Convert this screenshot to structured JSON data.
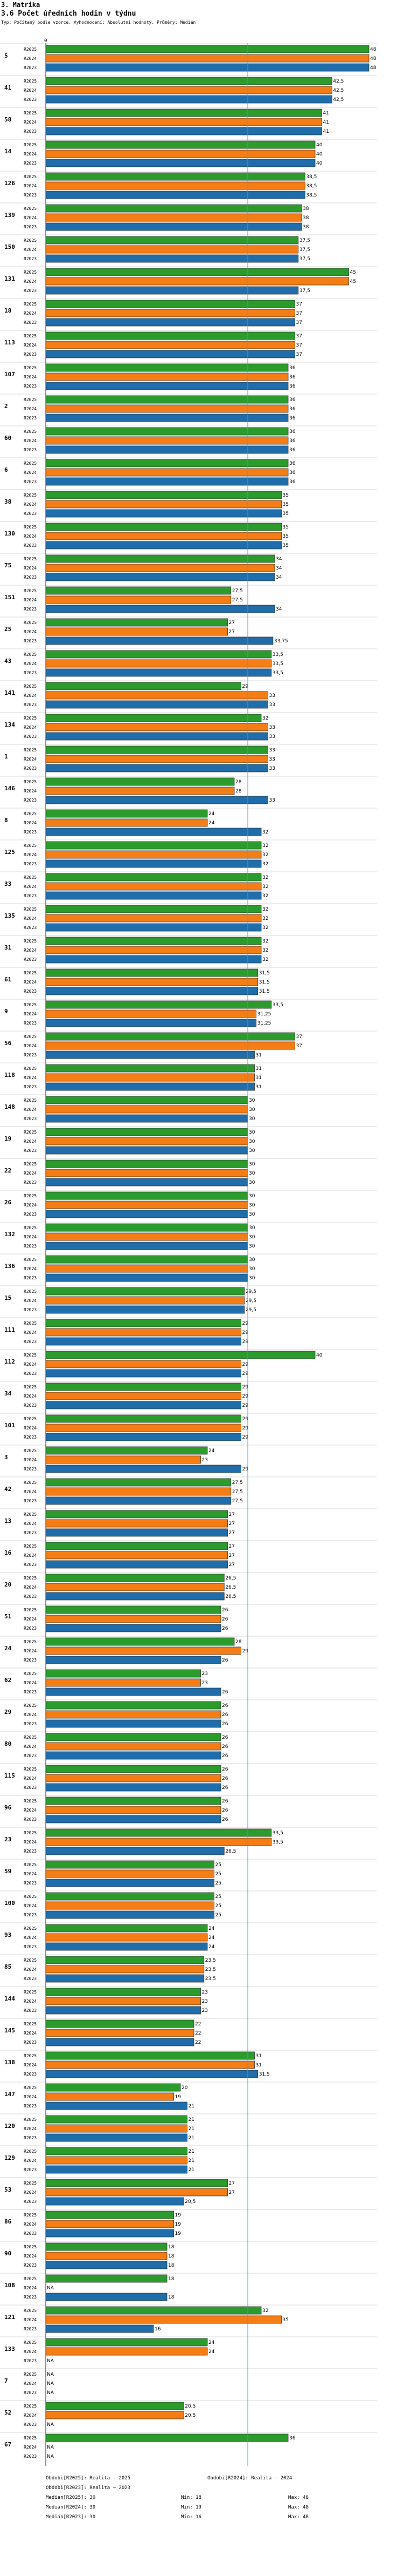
{
  "header": {
    "section": "3. Matrika",
    "title": "3.6 Počet úředních hodin v týdnu",
    "subtitle": "Typ: Počítaný podle vzorce, Vyhodnocení: Absolutní hodnoty, Průměry: Medián"
  },
  "colors": {
    "R2025": "#2b9c2b",
    "R2024": "#f57d16",
    "R2023": "#1f6dab",
    "axis": "#4a9cc7"
  },
  "chart_data": {
    "type": "bar",
    "orientation": "horizontal",
    "series_names": [
      "R2025",
      "R2024",
      "R2023"
    ],
    "xlim": [
      0,
      48
    ],
    "axis_zero_label": "0",
    "median": 30,
    "groups": [
      {
        "id": "5",
        "values": [
          48,
          48,
          48
        ],
        "labels": [
          "48",
          "48",
          "48"
        ]
      },
      {
        "id": "41",
        "values": [
          42.5,
          42.5,
          42.5
        ],
        "labels": [
          "42,5",
          "42,5",
          "42,5"
        ]
      },
      {
        "id": "58",
        "values": [
          41,
          41,
          41
        ],
        "labels": [
          "41",
          "41",
          "41"
        ]
      },
      {
        "id": "14",
        "values": [
          40,
          40,
          40
        ],
        "labels": [
          "40",
          "40",
          "40"
        ]
      },
      {
        "id": "126",
        "values": [
          38.5,
          38.5,
          38.5
        ],
        "labels": [
          "38,5",
          "38,5",
          "38,5"
        ]
      },
      {
        "id": "139",
        "values": [
          38,
          38,
          38
        ],
        "labels": [
          "38",
          "38",
          "38"
        ]
      },
      {
        "id": "150",
        "values": [
          37.5,
          37.5,
          37.5
        ],
        "labels": [
          "37,5",
          "37,5",
          "37,5"
        ]
      },
      {
        "id": "131",
        "values": [
          45,
          45,
          37.5
        ],
        "labels": [
          "45",
          "45",
          "37,5"
        ]
      },
      {
        "id": "18",
        "values": [
          37,
          37,
          37
        ],
        "labels": [
          "37",
          "37",
          "37"
        ]
      },
      {
        "id": "113",
        "values": [
          37,
          37,
          37
        ],
        "labels": [
          "37",
          "37",
          "37"
        ]
      },
      {
        "id": "107",
        "values": [
          36,
          36,
          36
        ],
        "labels": [
          "36",
          "36",
          "36"
        ]
      },
      {
        "id": "2",
        "values": [
          36,
          36,
          36
        ],
        "labels": [
          "36",
          "36",
          "36"
        ]
      },
      {
        "id": "60",
        "values": [
          36,
          36,
          36
        ],
        "labels": [
          "36",
          "36",
          "36"
        ]
      },
      {
        "id": "6",
        "values": [
          36,
          36,
          36
        ],
        "labels": [
          "36",
          "36",
          "36"
        ]
      },
      {
        "id": "38",
        "values": [
          35,
          35,
          35
        ],
        "labels": [
          "35",
          "35",
          "35"
        ]
      },
      {
        "id": "130",
        "values": [
          35,
          35,
          35
        ],
        "labels": [
          "35",
          "35",
          "35"
        ]
      },
      {
        "id": "75",
        "values": [
          34,
          34,
          34
        ],
        "labels": [
          "34",
          "34",
          "34"
        ]
      },
      {
        "id": "151",
        "values": [
          27.5,
          27.5,
          34
        ],
        "labels": [
          "27,5",
          "27,5",
          "34"
        ]
      },
      {
        "id": "25",
        "values": [
          27,
          27,
          33.75
        ],
        "labels": [
          "27",
          "27",
          "33,75"
        ]
      },
      {
        "id": "43",
        "values": [
          33.5,
          33.5,
          33.5
        ],
        "labels": [
          "33,5",
          "33,5",
          "33,5"
        ]
      },
      {
        "id": "141",
        "values": [
          29,
          33,
          33
        ],
        "labels": [
          "29",
          "33",
          "33"
        ]
      },
      {
        "id": "134",
        "values": [
          32,
          33,
          33
        ],
        "labels": [
          "32",
          "33",
          "33"
        ]
      },
      {
        "id": "1",
        "values": [
          33,
          33,
          33
        ],
        "labels": [
          "33",
          "33",
          "33"
        ]
      },
      {
        "id": "146",
        "values": [
          28,
          28,
          33
        ],
        "labels": [
          "28",
          "28",
          "33"
        ]
      },
      {
        "id": "8",
        "values": [
          24,
          24,
          32
        ],
        "labels": [
          "24",
          "24",
          "32"
        ]
      },
      {
        "id": "125",
        "values": [
          32,
          32,
          32
        ],
        "labels": [
          "32",
          "32",
          "32"
        ]
      },
      {
        "id": "33",
        "values": [
          32,
          32,
          32
        ],
        "labels": [
          "32",
          "32",
          "32"
        ]
      },
      {
        "id": "135",
        "values": [
          32,
          32,
          32
        ],
        "labels": [
          "32",
          "32",
          "32"
        ]
      },
      {
        "id": "31",
        "values": [
          32,
          32,
          32
        ],
        "labels": [
          "32",
          "32",
          "32"
        ]
      },
      {
        "id": "61",
        "values": [
          31.5,
          31.5,
          31.5
        ],
        "labels": [
          "31,5",
          "31,5",
          "31,5"
        ]
      },
      {
        "id": "9",
        "values": [
          33.5,
          31.25,
          31.25
        ],
        "labels": [
          "33,5",
          "31,25",
          "31,25"
        ]
      },
      {
        "id": "56",
        "values": [
          37,
          37,
          31
        ],
        "labels": [
          "37",
          "37",
          "31"
        ]
      },
      {
        "id": "118",
        "values": [
          31,
          31,
          31
        ],
        "labels": [
          "31",
          "31",
          "31"
        ]
      },
      {
        "id": "148",
        "values": [
          30,
          30,
          30
        ],
        "labels": [
          "30",
          "30",
          "30"
        ]
      },
      {
        "id": "19",
        "values": [
          30,
          30,
          30
        ],
        "labels": [
          "30",
          "30",
          "30"
        ]
      },
      {
        "id": "22",
        "values": [
          30,
          30,
          30
        ],
        "labels": [
          "30",
          "30",
          "30"
        ]
      },
      {
        "id": "26",
        "values": [
          30,
          30,
          30
        ],
        "labels": [
          "30",
          "30",
          "30"
        ]
      },
      {
        "id": "132",
        "values": [
          30,
          30,
          30
        ],
        "labels": [
          "30",
          "30",
          "30"
        ]
      },
      {
        "id": "136",
        "values": [
          30,
          30,
          30
        ],
        "labels": [
          "30",
          "30",
          "30"
        ]
      },
      {
        "id": "15",
        "values": [
          29.5,
          29.5,
          29.5
        ],
        "labels": [
          "29,5",
          "29,5",
          "29,5"
        ]
      },
      {
        "id": "111",
        "values": [
          29,
          29,
          29
        ],
        "labels": [
          "29",
          "29",
          "29"
        ]
      },
      {
        "id": "112",
        "values": [
          40,
          29,
          29
        ],
        "labels": [
          "40",
          "29",
          "29"
        ]
      },
      {
        "id": "34",
        "values": [
          29,
          29,
          29
        ],
        "labels": [
          "29",
          "29",
          "29"
        ]
      },
      {
        "id": "101",
        "values": [
          29,
          29,
          29
        ],
        "labels": [
          "29",
          "29",
          "29"
        ]
      },
      {
        "id": "3",
        "values": [
          24,
          23,
          29
        ],
        "labels": [
          "24",
          "23",
          "29"
        ]
      },
      {
        "id": "42",
        "values": [
          27.5,
          27.5,
          27.5
        ],
        "labels": [
          "27,5",
          "27,5",
          "27,5"
        ]
      },
      {
        "id": "13",
        "values": [
          27,
          27,
          27
        ],
        "labels": [
          "27",
          "27",
          "27"
        ]
      },
      {
        "id": "16",
        "values": [
          27,
          27,
          27
        ],
        "labels": [
          "27",
          "27",
          "27"
        ]
      },
      {
        "id": "20",
        "values": [
          26.5,
          26.5,
          26.5
        ],
        "labels": [
          "26,5",
          "26,5",
          "26,5"
        ]
      },
      {
        "id": "51",
        "values": [
          26,
          26,
          26
        ],
        "labels": [
          "26",
          "26",
          "26"
        ]
      },
      {
        "id": "24",
        "values": [
          28,
          29,
          26
        ],
        "labels": [
          "28",
          "29",
          "26"
        ]
      },
      {
        "id": "62",
        "values": [
          23,
          23,
          26
        ],
        "labels": [
          "23",
          "23",
          "26"
        ]
      },
      {
        "id": "29",
        "values": [
          26,
          26,
          26
        ],
        "labels": [
          "26",
          "26",
          "26"
        ]
      },
      {
        "id": "80",
        "values": [
          26,
          26,
          26
        ],
        "labels": [
          "26",
          "26",
          "26"
        ]
      },
      {
        "id": "115",
        "values": [
          26,
          26,
          26
        ],
        "labels": [
          "26",
          "26",
          "26"
        ]
      },
      {
        "id": "96",
        "values": [
          26,
          26,
          26
        ],
        "labels": [
          "26",
          "26",
          "26"
        ]
      },
      {
        "id": "23",
        "values": [
          33.5,
          33.5,
          26.5
        ],
        "labels": [
          "33,5",
          "33,5",
          "26,5"
        ]
      },
      {
        "id": "59",
        "values": [
          25,
          25,
          25
        ],
        "labels": [
          "25",
          "25",
          "25"
        ]
      },
      {
        "id": "100",
        "values": [
          25,
          25,
          25
        ],
        "labels": [
          "25",
          "25",
          "25"
        ]
      },
      {
        "id": "93",
        "values": [
          24,
          24,
          24
        ],
        "labels": [
          "24",
          "24",
          "24"
        ]
      },
      {
        "id": "85",
        "values": [
          23.5,
          23.5,
          23.5
        ],
        "labels": [
          "23,5",
          "23,5",
          "23,5"
        ]
      },
      {
        "id": "144",
        "values": [
          23,
          23,
          23
        ],
        "labels": [
          "23",
          "23",
          "23"
        ]
      },
      {
        "id": "145",
        "values": [
          22,
          22,
          22
        ],
        "labels": [
          "22",
          "22",
          "22"
        ]
      },
      {
        "id": "138",
        "values": [
          31,
          31,
          31.5
        ],
        "labels": [
          "31",
          "31",
          "31,5"
        ]
      },
      {
        "id": "147",
        "values": [
          20,
          19,
          21
        ],
        "labels": [
          "20",
          "19",
          "21"
        ]
      },
      {
        "id": "120",
        "values": [
          21,
          21,
          21
        ],
        "labels": [
          "21",
          "21",
          "21"
        ]
      },
      {
        "id": "129",
        "values": [
          21,
          21,
          21
        ],
        "labels": [
          "21",
          "21",
          "21"
        ]
      },
      {
        "id": "53",
        "values": [
          27,
          27,
          20.5
        ],
        "labels": [
          "27",
          "27",
          "20,5"
        ]
      },
      {
        "id": "86",
        "values": [
          19,
          19,
          19
        ],
        "labels": [
          "19",
          "19",
          "19"
        ]
      },
      {
        "id": "90",
        "values": [
          18,
          18,
          18
        ],
        "labels": [
          "18",
          "18",
          "18"
        ]
      },
      {
        "id": "108",
        "values": [
          18,
          null,
          18
        ],
        "labels": [
          "18",
          "NA",
          "18"
        ]
      },
      {
        "id": "121",
        "values": [
          32,
          35,
          16
        ],
        "labels": [
          "32",
          "35",
          "16"
        ]
      },
      {
        "id": "133",
        "values": [
          24,
          24,
          null
        ],
        "labels": [
          "24",
          "24",
          "NA"
        ]
      },
      {
        "id": "7",
        "values": [
          null,
          null,
          null
        ],
        "labels": [
          "NA",
          "NA",
          "NA"
        ]
      },
      {
        "id": "52",
        "values": [
          20.5,
          20.5,
          null
        ],
        "labels": [
          "20,5",
          "20,5",
          "NA"
        ]
      },
      {
        "id": "67",
        "values": [
          36,
          null,
          null
        ],
        "labels": [
          "36",
          "NA",
          "NA"
        ]
      }
    ],
    "footer": [
      {
        "left": "Obdobi[R2025]: Realita – 2025",
        "right": "Obdobi[R2024]: Realita – 2024"
      },
      {
        "left": "Obdobi[R2023]: Realita – 2023",
        "right": ""
      },
      {
        "left": "Median[R2025]: 30",
        "mid": "Min: 18",
        "right": "Max: 48"
      },
      {
        "left": "Median[R2024]: 30",
        "mid": "Min: 19",
        "right": "Max: 48"
      },
      {
        "left": "Median[R2023]: 30",
        "mid": "Min: 16",
        "right": "Max: 48"
      }
    ]
  }
}
